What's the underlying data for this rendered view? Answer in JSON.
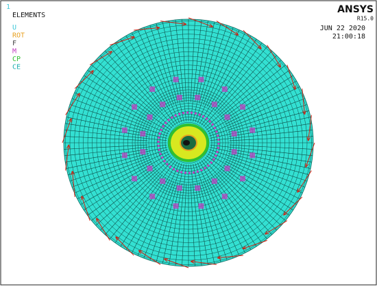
{
  "header": {
    "window_number": "1",
    "plot_label": "ELEMENTS",
    "product": "ANSYS",
    "release": "R15.0",
    "date": "JUN 22 2020",
    "time": "21:00:18"
  },
  "legend": [
    {
      "label": "U",
      "color": "#3fc8d8"
    },
    {
      "label": "ROT",
      "color": "#e8a020"
    },
    {
      "label": "F",
      "color": "#404040"
    },
    {
      "label": "M",
      "color": "#c040c0"
    },
    {
      "label": "CP",
      "color": "#30c030"
    },
    {
      "label": "CE",
      "color": "#20b0b0"
    }
  ]
}
